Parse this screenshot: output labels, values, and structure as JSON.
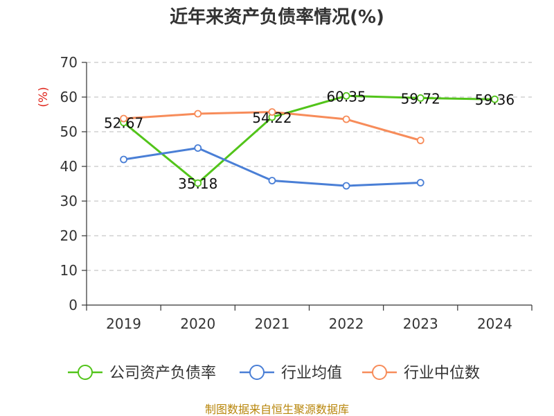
{
  "chart_data": {
    "type": "line",
    "title": "近年来资产负债率情况(%)",
    "ylabel": "(%)",
    "ylim": [
      0,
      70
    ],
    "yticks": [
      0,
      10,
      20,
      30,
      40,
      50,
      60,
      70
    ],
    "categories": [
      "2019",
      "2020",
      "2021",
      "2022",
      "2023",
      "2024"
    ],
    "grid": true,
    "legend_position": "bottom",
    "series": [
      {
        "name": "公司资产负债率",
        "color": "#52c41a",
        "values": [
          52.67,
          35.18,
          54.22,
          60.35,
          59.72,
          59.36
        ],
        "labels": [
          "52.67",
          "35.18",
          "54.22",
          "60.35",
          "59.72",
          "59.36"
        ]
      },
      {
        "name": "行业均值",
        "color": "#4a7fd6",
        "values": [
          42.0,
          45.3,
          35.9,
          34.4,
          35.3,
          null
        ]
      },
      {
        "name": "行业中位数",
        "color": "#f78c5a",
        "values": [
          53.8,
          55.2,
          55.7,
          53.6,
          47.5,
          null
        ]
      }
    ]
  },
  "source": "制图数据来自恒生聚源数据库"
}
